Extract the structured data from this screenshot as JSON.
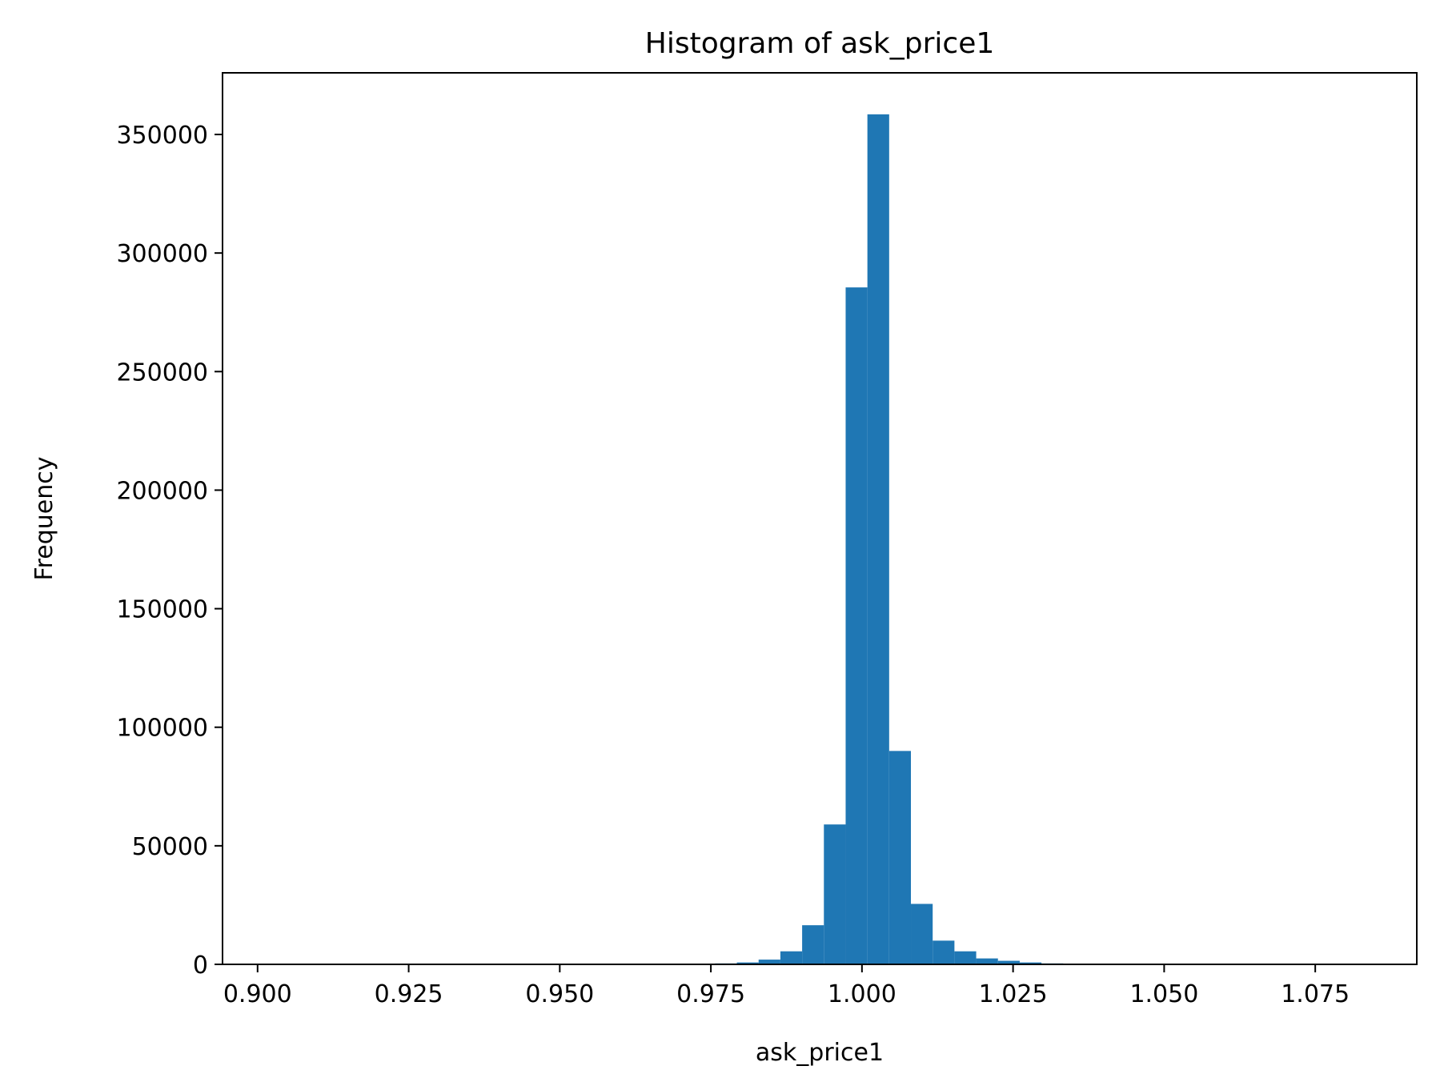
{
  "chart_data": {
    "type": "bar",
    "title": "Histogram of ask_price1",
    "xlabel": "ask_price1",
    "ylabel": "Frequency",
    "xlim": [
      0.8942,
      1.0918
    ],
    "ylim": [
      0,
      376000
    ],
    "xticks": [
      0.9,
      0.925,
      0.95,
      0.975,
      1.0,
      1.025,
      1.05,
      1.075
    ],
    "xtick_labels": [
      "0.900",
      "0.925",
      "0.950",
      "0.975",
      "1.000",
      "1.025",
      "1.050",
      "1.075"
    ],
    "yticks": [
      0,
      50000,
      100000,
      150000,
      200000,
      250000,
      300000,
      350000
    ],
    "ytick_labels": [
      "0",
      "50000",
      "100000",
      "150000",
      "200000",
      "250000",
      "300000",
      "350000"
    ],
    "bin_edges": [
      0.9721,
      0.9757,
      0.9793,
      0.9829,
      0.9865,
      0.9901,
      0.9937,
      0.9973,
      1.0009,
      1.0045,
      1.0081,
      1.0117,
      1.0153,
      1.0189,
      1.0225,
      1.0261,
      1.0297,
      1.0333,
      1.0369
    ],
    "values": [
      200,
      400,
      800,
      2000,
      5500,
      16500,
      59000,
      285500,
      358500,
      90000,
      25500,
      10000,
      5500,
      2500,
      1500,
      800,
      400,
      200
    ],
    "bar_color": "#1f77b4",
    "grid": false,
    "legend": "none"
  }
}
